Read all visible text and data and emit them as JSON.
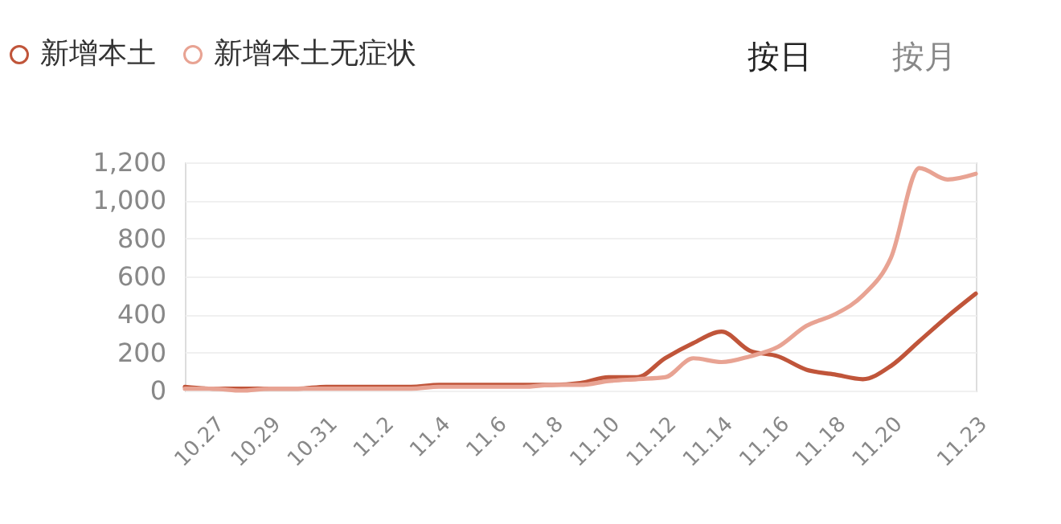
{
  "chart_data": {
    "type": "line",
    "categories": [
      null,
      "10.27",
      null,
      "10.29",
      null,
      "10.31",
      null,
      "11.2",
      null,
      "11.4",
      null,
      "11.6",
      null,
      "11.8",
      null,
      "11.10",
      null,
      "11.12",
      null,
      "11.14",
      null,
      "11.16",
      null,
      "11.18",
      null,
      "11.20",
      null,
      null,
      "11.23"
    ],
    "series": [
      {
        "name": "新增本土",
        "color": "#c0553a",
        "values": [
          20,
          10,
          10,
          10,
          10,
          20,
          20,
          20,
          20,
          30,
          30,
          30,
          30,
          30,
          40,
          70,
          70,
          170,
          250,
          310,
          210,
          180,
          110,
          85,
          60,
          130,
          260,
          390,
          510
        ]
      },
      {
        "name": "新增本土无症状",
        "color": "#e8a393",
        "values": [
          10,
          10,
          0,
          10,
          10,
          10,
          10,
          10,
          10,
          20,
          20,
          20,
          20,
          30,
          30,
          50,
          60,
          70,
          170,
          150,
          180,
          230,
          340,
          400,
          500,
          700,
          1170,
          1110,
          1140
        ]
      }
    ],
    "ylim": [
      0,
      1200
    ],
    "yticks": [
      0,
      200,
      400,
      600,
      800,
      {
        "value": 1000,
        "label": "1,000"
      },
      {
        "value": 1200,
        "label": "1,200"
      }
    ],
    "grid": "y",
    "legend": "top left",
    "marker": "none",
    "line_style": "solid",
    "annotations": [
      "按日",
      "按月"
    ]
  }
}
